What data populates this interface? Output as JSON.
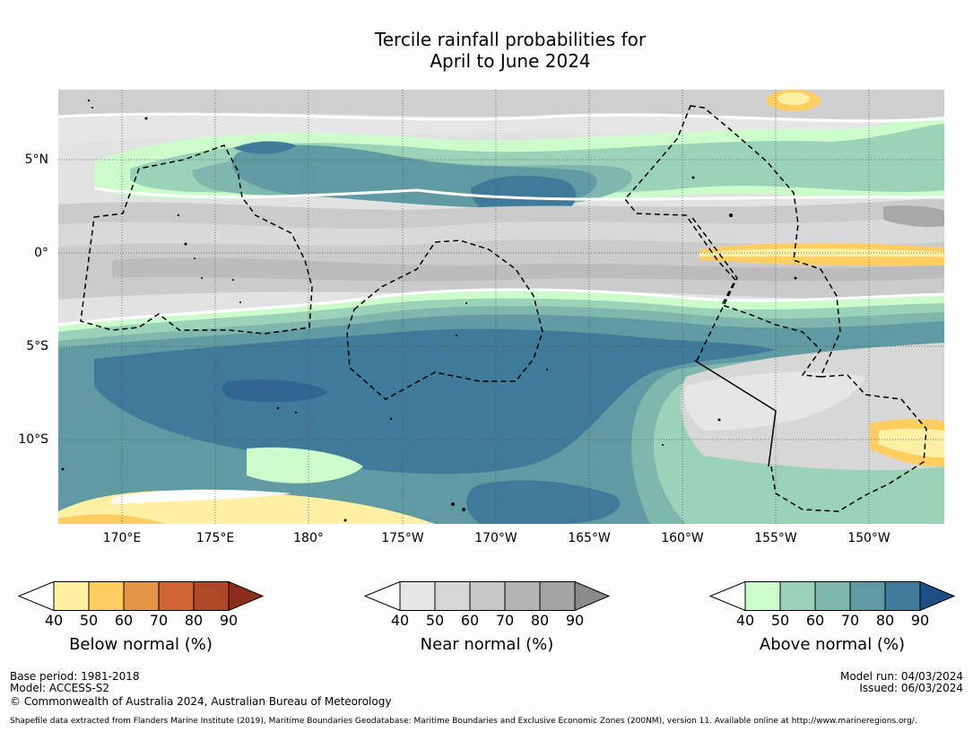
{
  "title": {
    "line1": "Tercile rainfall probabilities for",
    "line2": "April to June 2024"
  },
  "map": {
    "lat_labels": [
      "5°N",
      "0°",
      "5°S",
      "10°S"
    ],
    "lon_labels": [
      "170°E",
      "175°E",
      "180°",
      "175°W",
      "170°W",
      "165°W",
      "160°W",
      "155°W",
      "150°W"
    ],
    "colors": {
      "below": [
        "#fff0a6",
        "#ffcd60",
        "#e39547",
        "#cf6534",
        "#b04726",
        "#8c2c1c"
      ],
      "near": [
        "#e6e6e6",
        "#d7d7d7",
        "#c7c7c7",
        "#b5b5b5",
        "#a3a3a3",
        "#8a8a8a"
      ],
      "above": [
        "#ccfccc",
        "#9ad3b8",
        "#7fb6ae",
        "#609ba4",
        "#3f7a9a",
        "#1d4f85"
      ]
    }
  },
  "colorbars": [
    {
      "id": "below",
      "label": "Below normal (%)",
      "ticks": [
        "40",
        "50",
        "60",
        "70",
        "80",
        "90"
      ]
    },
    {
      "id": "near",
      "label": "Near normal (%)",
      "ticks": [
        "40",
        "50",
        "60",
        "70",
        "80",
        "90"
      ]
    },
    {
      "id": "above",
      "label": "Above normal (%)",
      "ticks": [
        "40",
        "50",
        "60",
        "70",
        "80",
        "90"
      ]
    }
  ],
  "footer": {
    "base_period": "Base period: 1981-2018",
    "model": "Model: ACCESS-S2",
    "copyright": "© Commonwealth of Australia 2024, Australian Bureau of Meteorology",
    "model_run": "Model run: 04/03/2024",
    "issued": "Issued: 06/03/2024",
    "shapefile": "Shapefile data extracted from Flanders Marine Institute (2019), Maritime Boundaries Geodatabase: Maritime Boundaries and Exclusive Economic Zones (200NM), version 11. Available online at http://www.marineregions.org/."
  }
}
